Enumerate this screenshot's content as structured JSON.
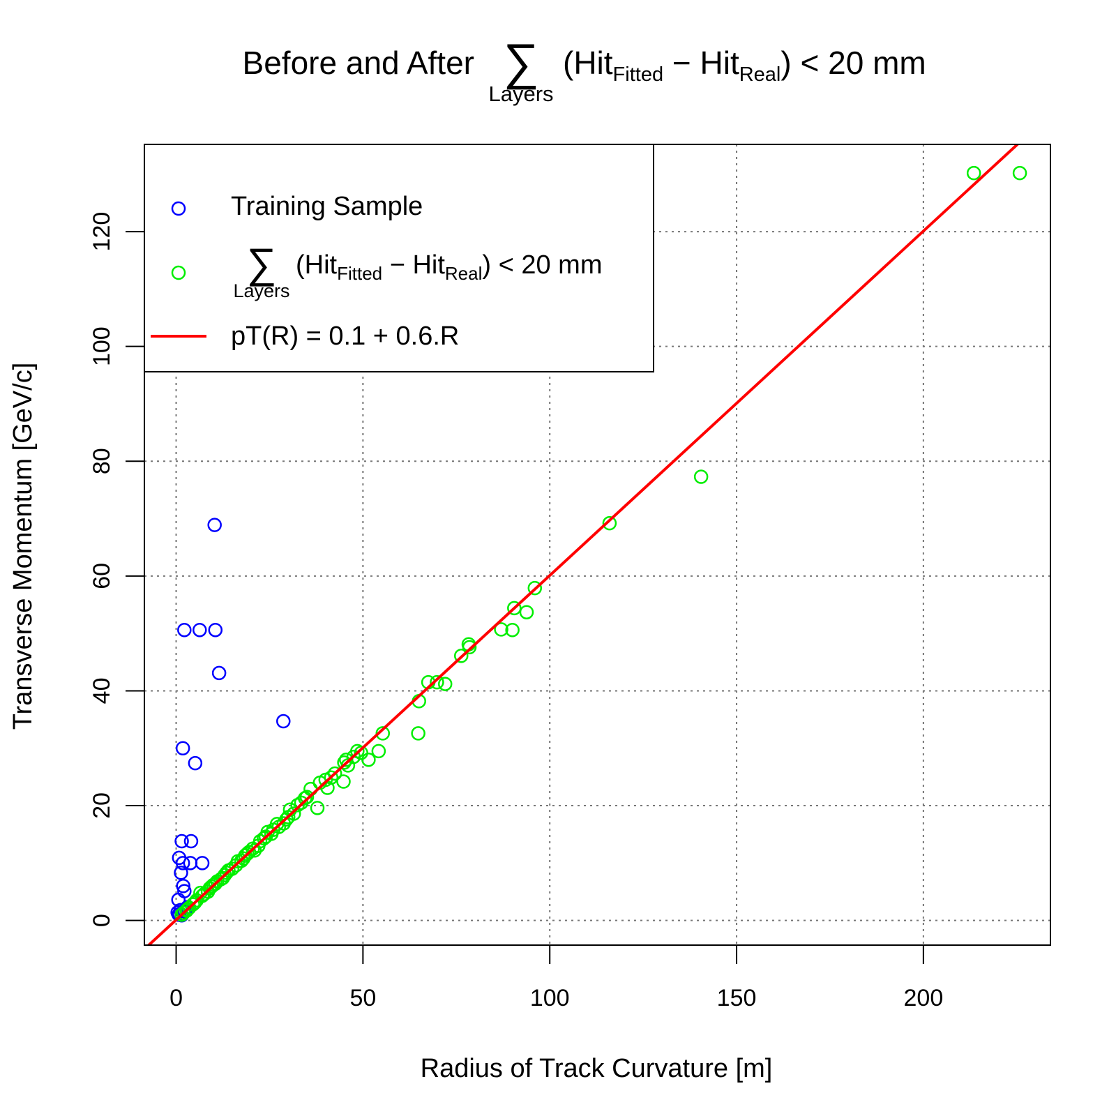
{
  "chart_data": {
    "type": "scatter",
    "title": {
      "prefix": "Before and After",
      "sum_symbol": "∑",
      "sum_under": "Layers",
      "open": "(Hit",
      "sub1": "Fitted",
      "minus": " − Hit",
      "sub2": "Real",
      "close": ") < 20 mm"
    },
    "xlabel": "Radius of Track Curvature [m]",
    "ylabel": "Transverse Momentum [GeV/c]",
    "xlim": [
      -8.5,
      234
    ],
    "ylim": [
      -4.3,
      135.2
    ],
    "x_ticks": [
      0,
      50,
      100,
      150,
      200
    ],
    "y_ticks": [
      0,
      20,
      40,
      60,
      80,
      100,
      120
    ],
    "grid": true,
    "legend": {
      "placement": "top-left",
      "entries": [
        {
          "kind": "point",
          "color": "#0000ff",
          "label": "Training Sample"
        },
        {
          "kind": "point",
          "color": "#00ee00",
          "label_parts": {
            "sum_symbol": "∑",
            "sum_under": "Layers",
            "open": "(Hit",
            "sub1": "Fitted",
            "minus": " − Hit",
            "sub2": "Real",
            "close": ") < 20 mm"
          }
        },
        {
          "kind": "line",
          "color": "#ff0000",
          "label": "pT(R) = 0.1 + 0.6.R"
        }
      ]
    },
    "fit_line": {
      "intercept": 0.1,
      "slope": 0.6,
      "color": "#ff0000"
    },
    "series": [
      {
        "name": "Training Sample",
        "color": "#0000ff",
        "points": [
          [
            10.3,
            68.9
          ],
          [
            2.2,
            50.6
          ],
          [
            6.3,
            50.6
          ],
          [
            10.5,
            50.6
          ],
          [
            11.5,
            43.1
          ],
          [
            28.7,
            34.7
          ],
          [
            1.8,
            30.0
          ],
          [
            5.1,
            27.4
          ],
          [
            1.5,
            13.8
          ],
          [
            4.0,
            13.8
          ],
          [
            0.8,
            10.9
          ],
          [
            1.8,
            10.0
          ],
          [
            3.8,
            10.0
          ],
          [
            7.0,
            10.0
          ],
          [
            1.3,
            8.3
          ],
          [
            1.9,
            6.0
          ],
          [
            2.2,
            5.1
          ],
          [
            0.6,
            3.6
          ],
          [
            0.4,
            1.4
          ],
          [
            0.9,
            1.1
          ],
          [
            1.5,
            0.9
          ],
          [
            2.3,
            1.6
          ],
          [
            3.0,
            2.3
          ],
          [
            1.2,
            1.8
          ],
          [
            0.7,
            1.0
          ]
        ]
      },
      {
        "name": "∑ (HitFitted − HitReal) < 20 mm",
        "color": "#00ee00",
        "points": [
          [
            213.5,
            130.2
          ],
          [
            225.8,
            130.2
          ],
          [
            140.5,
            77.3
          ],
          [
            116.0,
            69.2
          ],
          [
            96.0,
            57.9
          ],
          [
            90.5,
            54.4
          ],
          [
            93.8,
            53.7
          ],
          [
            87.0,
            50.7
          ],
          [
            90.0,
            50.6
          ],
          [
            78.3,
            48.1
          ],
          [
            78.5,
            47.6
          ],
          [
            76.3,
            46.1
          ],
          [
            67.5,
            41.5
          ],
          [
            69.8,
            41.5
          ],
          [
            72.0,
            41.2
          ],
          [
            65.0,
            38.2
          ],
          [
            64.8,
            32.6
          ],
          [
            55.3,
            32.6
          ],
          [
            54.2,
            29.5
          ],
          [
            48.5,
            29.5
          ],
          [
            51.5,
            28.0
          ],
          [
            47.5,
            28.5
          ],
          [
            45.0,
            27.5
          ],
          [
            44.8,
            24.2
          ],
          [
            37.8,
            19.6
          ],
          [
            40.5,
            23.1
          ],
          [
            42.5,
            25.6
          ],
          [
            40.0,
            24.5
          ],
          [
            38.5,
            24.0
          ],
          [
            36.0,
            22.9
          ],
          [
            34.5,
            21.3
          ],
          [
            32.5,
            20.1
          ],
          [
            31.5,
            18.6
          ],
          [
            30.5,
            19.3
          ],
          [
            28.8,
            16.9
          ],
          [
            27.0,
            16.8
          ],
          [
            25.5,
            15.1
          ],
          [
            24.0,
            14.6
          ],
          [
            22.5,
            13.8
          ],
          [
            21.0,
            12.2
          ],
          [
            19.5,
            11.9
          ],
          [
            18.0,
            10.8
          ],
          [
            16.5,
            10.3
          ],
          [
            15.0,
            9.0
          ],
          [
            13.5,
            8.3
          ],
          [
            12.0,
            7.2
          ],
          [
            10.5,
            6.4
          ],
          [
            9.0,
            5.6
          ],
          [
            7.5,
            4.6
          ],
          [
            6.5,
            4.8
          ],
          [
            5.5,
            3.5
          ],
          [
            4.5,
            2.8
          ],
          [
            3.5,
            2.2
          ],
          [
            2.8,
            1.7
          ],
          [
            2.0,
            1.3
          ],
          [
            1.5,
            1.0
          ],
          [
            8.5,
            5.0
          ],
          [
            11.0,
            6.8
          ],
          [
            14.0,
            8.7
          ],
          [
            17.5,
            10.4
          ],
          [
            20.5,
            12.5
          ],
          [
            23.5,
            14.3
          ],
          [
            26.0,
            15.8
          ],
          [
            29.5,
            17.6
          ],
          [
            33.5,
            20.5
          ],
          [
            35.0,
            21.5
          ],
          [
            41.5,
            24.9
          ],
          [
            46.0,
            27.0
          ],
          [
            49.5,
            29.2
          ],
          [
            45.5,
            28.0
          ],
          [
            30.0,
            18.0
          ],
          [
            27.5,
            16.3
          ],
          [
            22.0,
            13.0
          ],
          [
            18.5,
            11.3
          ],
          [
            16.0,
            9.6
          ],
          [
            13.0,
            7.9
          ],
          [
            10.0,
            6.2
          ],
          [
            7.0,
            4.3
          ],
          [
            5.0,
            3.1
          ],
          [
            3.0,
            1.9
          ],
          [
            24.5,
            15.4
          ],
          [
            19.0,
            11.6
          ],
          [
            12.5,
            7.4
          ],
          [
            9.5,
            5.9
          ]
        ]
      }
    ]
  }
}
